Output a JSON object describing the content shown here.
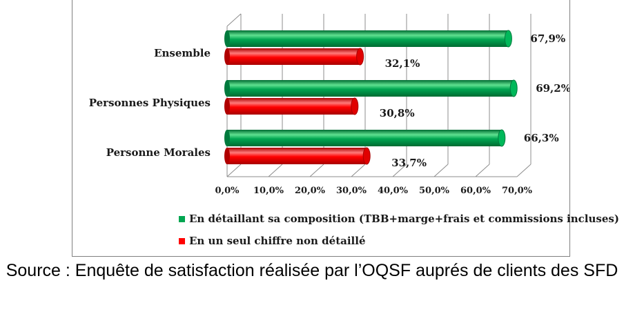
{
  "chart_data": {
    "type": "bar",
    "orientation": "horizontal",
    "style": "3d-cylinder",
    "categories": [
      "Ensemble",
      "Personnes Physiques",
      "Personne Morales"
    ],
    "series": [
      {
        "name": "En détaillant sa composition (TBB+marge+frais et commissions incluses)",
        "values": [
          67.9,
          69.2,
          66.3
        ],
        "labels": [
          "67,9%",
          "69,2%",
          "66,3%"
        ],
        "color": "#00a651"
      },
      {
        "name": "En un seul chiffre non détaillé",
        "values": [
          32.1,
          30.8,
          33.7
        ],
        "labels": [
          "32,1%",
          "30,8%",
          "33,7%"
        ],
        "color": "#ff0000"
      }
    ],
    "x_ticks": [
      "0,0%",
      "10,0%",
      "20,0%",
      "30,0%",
      "40,0%",
      "50,0%",
      "60,0%",
      "70,0%"
    ],
    "xlim": [
      0,
      70
    ],
    "grid": true,
    "legend_position": "bottom"
  },
  "source_text": "Source : Enquête de satisfaction réalisée par l’OQSF auprés de clients des SFD"
}
